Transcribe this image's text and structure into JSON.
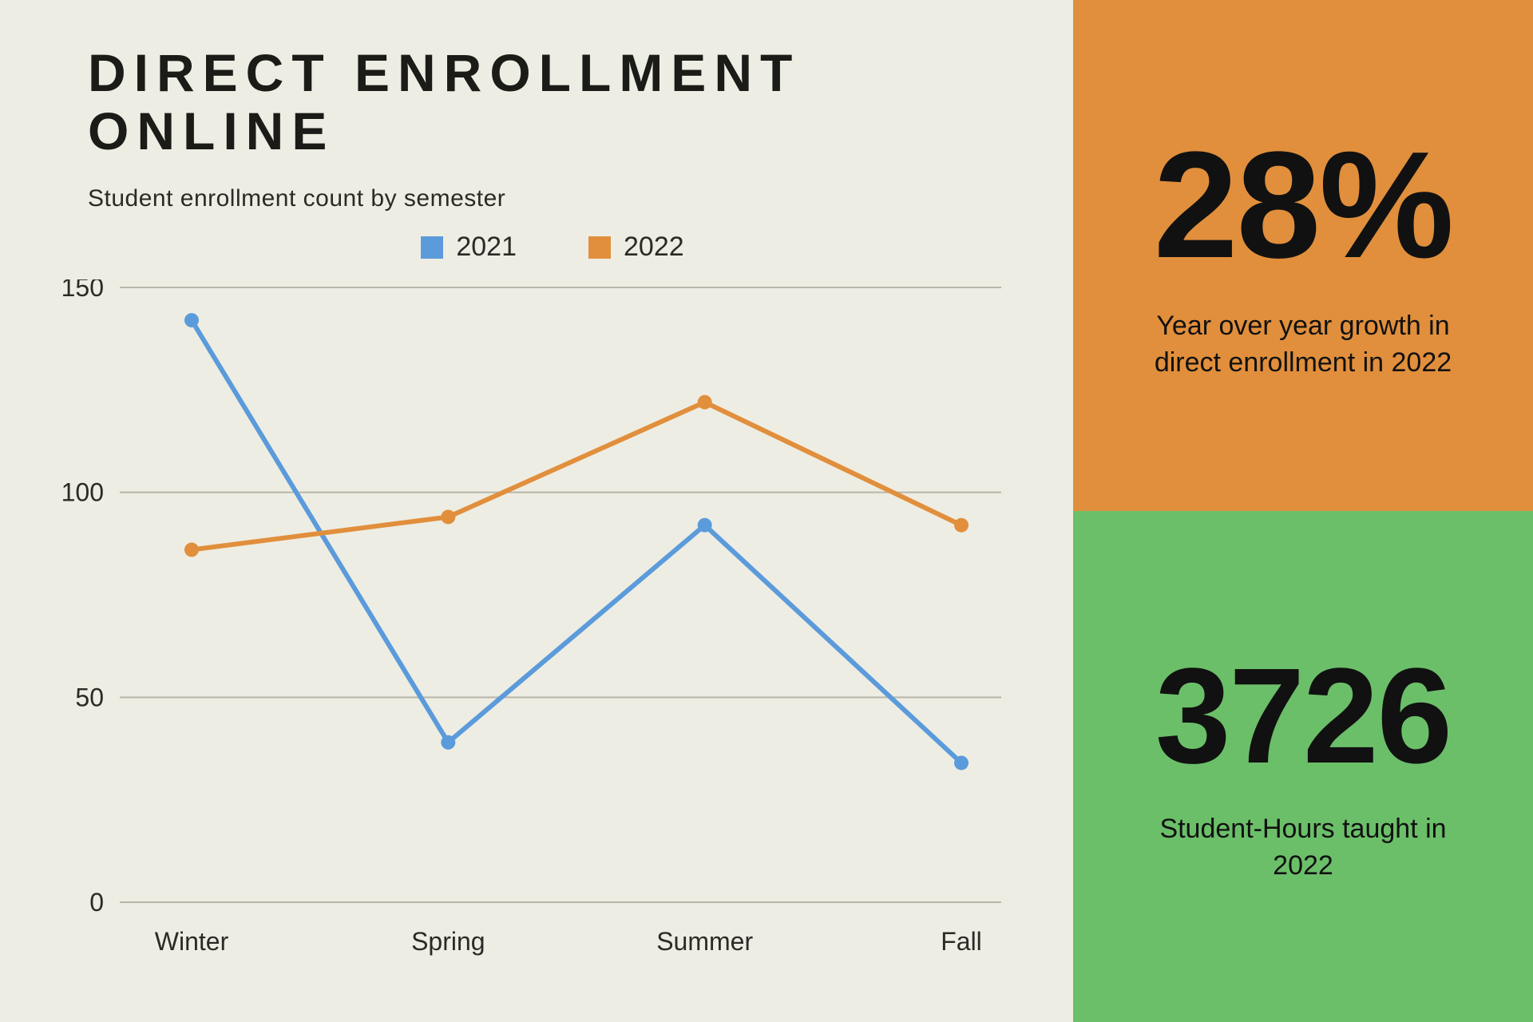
{
  "title": "DIRECT ENROLLMENT ONLINE",
  "subtitle": "Student enrollment count by semester",
  "chart": {
    "type": "line",
    "categories": [
      "Winter",
      "Spring",
      "Summer",
      "Fall"
    ],
    "series": [
      {
        "name": "2021",
        "color": "#5b9bdb",
        "values": [
          142,
          39,
          92,
          34
        ]
      },
      {
        "name": "2022",
        "color": "#e18f3c",
        "values": [
          86,
          94,
          122,
          92
        ]
      }
    ],
    "y_ticks": [
      0,
      50,
      100,
      150
    ],
    "ylim": [
      0,
      150
    ],
    "grid_color": "#b8b6ab",
    "background_color": "#eeede3",
    "line_width": 6,
    "marker_radius": 9,
    "legend_swatch_size": 28,
    "axis_fontsize": 32
  },
  "stats": [
    {
      "value": "28%",
      "description": "Year over year growth in direct enrollment in 2022",
      "bg_color": "#e18f3c",
      "value_fontsize": 190
    },
    {
      "value": "3726",
      "description": "Student-Hours taught in 2022",
      "bg_color": "#6bbf69",
      "value_fontsize": 170
    }
  ],
  "title_fontsize": 66,
  "subtitle_fontsize": 30,
  "legend_fontsize": 34,
  "stat_desc_fontsize": 34
}
